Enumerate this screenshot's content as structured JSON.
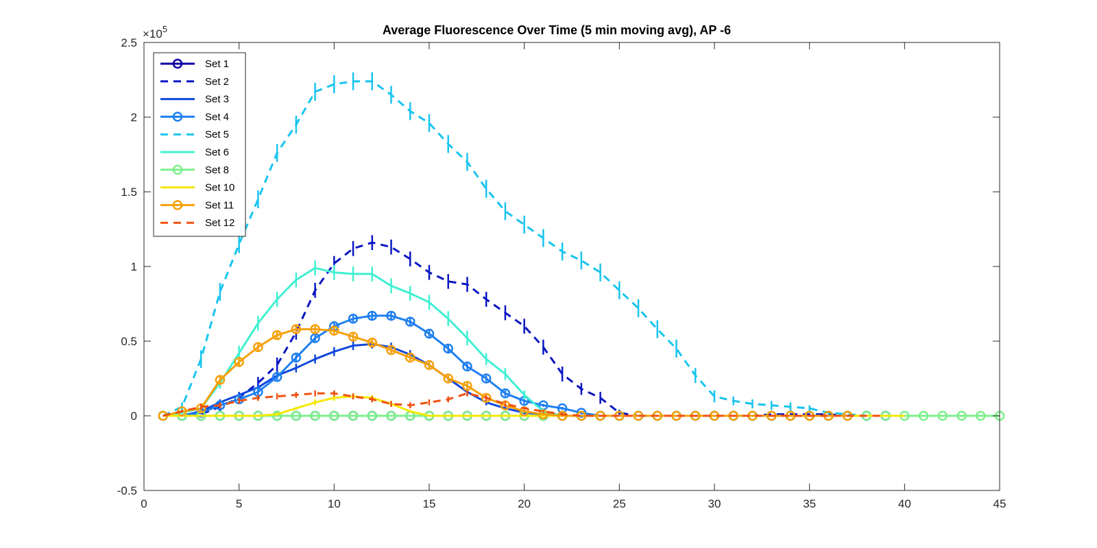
{
  "chart_data": {
    "type": "line",
    "title": "Average Fluorescence Over Time (5 min moving avg), AP -6",
    "xlabel": "",
    "ylabel": "",
    "xlim": [
      0,
      45
    ],
    "ylim": [
      -0.5,
      2.5
    ],
    "y_scale_base": "10",
    "y_scale_exp": "5",
    "grid": false,
    "legend_position": "top-left",
    "x_ticks": [
      "0",
      "5",
      "10",
      "15",
      "20",
      "25",
      "30",
      "35",
      "40",
      "45"
    ],
    "y_ticks": [
      "-0.5",
      "0",
      "0.5",
      "1",
      "1.5",
      "2",
      "2.5"
    ],
    "x_tick_values": [
      0,
      5,
      10,
      15,
      20,
      25,
      30,
      35,
      40,
      45
    ],
    "y_tick_values": [
      -0.5,
      0,
      0.5,
      1,
      1.5,
      2,
      2.5
    ],
    "series": [
      {
        "name": "Set 1",
        "color": "#0c00a3",
        "dashed": false,
        "marker": "circle",
        "x": [
          1,
          2,
          3,
          4,
          5,
          6,
          7,
          8,
          9,
          10,
          11,
          12,
          13,
          14,
          15,
          16,
          17,
          18,
          19,
          20,
          21,
          22,
          23,
          24,
          25,
          26,
          27,
          28,
          29,
          30,
          31,
          32,
          33,
          34,
          35,
          36,
          37,
          38,
          39
        ],
        "y": [
          0,
          0,
          0,
          0,
          0,
          0,
          0,
          0,
          0,
          0,
          0,
          0,
          0,
          0,
          0,
          0,
          0,
          0,
          0,
          0,
          0,
          0,
          0,
          0,
          0,
          0,
          0,
          0,
          0,
          0,
          0,
          0,
          0,
          0,
          0,
          0,
          0,
          0,
          0
        ],
        "err": [
          0,
          0,
          0,
          0,
          0,
          0,
          0,
          0,
          0,
          0,
          0,
          0,
          0,
          0,
          0,
          0,
          0,
          0,
          0,
          0,
          0,
          0,
          0,
          0,
          0,
          0,
          0,
          0,
          0,
          0,
          0,
          0,
          0,
          0,
          0,
          0,
          0,
          0,
          0
        ]
      },
      {
        "name": "Set 2",
        "color": "#0a16c2",
        "dashed": true,
        "marker": "none",
        "x": [
          1,
          2,
          3,
          4,
          5,
          6,
          7,
          8,
          9,
          10,
          11,
          12,
          13,
          14,
          15,
          16,
          17,
          18,
          19,
          20,
          21,
          22,
          23,
          24,
          25,
          26,
          27,
          28,
          29,
          30,
          31,
          32,
          33,
          34,
          35,
          36,
          37,
          38,
          39
        ],
        "y": [
          0,
          0,
          0.01,
          0.06,
          0.12,
          0.22,
          0.34,
          0.56,
          0.84,
          1.02,
          1.12,
          1.16,
          1.13,
          1.05,
          0.96,
          0.9,
          0.88,
          0.78,
          0.69,
          0.6,
          0.46,
          0.28,
          0.18,
          0.12,
          0.02,
          0,
          0,
          0,
          0,
          0,
          0,
          0,
          0.01,
          0.01,
          0.01,
          0.01,
          0,
          0,
          0
        ],
        "err": [
          0,
          0,
          0,
          0.03,
          0.04,
          0.04,
          0.05,
          0.05,
          0.05,
          0.05,
          0.05,
          0.05,
          0.05,
          0.05,
          0.05,
          0.05,
          0.05,
          0.05,
          0.05,
          0.05,
          0.05,
          0.05,
          0.04,
          0.04,
          0.02,
          0,
          0,
          0,
          0,
          0,
          0,
          0,
          0,
          0,
          0,
          0,
          0,
          0,
          0
        ]
      },
      {
        "name": "Set 3",
        "color": "#1048de",
        "dashed": false,
        "marker": "none",
        "x": [
          1,
          2,
          3,
          4,
          5,
          6,
          7,
          8,
          9,
          10,
          11,
          12,
          13,
          14,
          15,
          16,
          17,
          18,
          19,
          20,
          21,
          22,
          23,
          24,
          25,
          26,
          27,
          28,
          29,
          30,
          31,
          32,
          33,
          34,
          35,
          36,
          37,
          38,
          39
        ],
        "y": [
          0,
          0,
          0.03,
          0.09,
          0.14,
          0.19,
          0.27,
          0.32,
          0.38,
          0.43,
          0.47,
          0.48,
          0.46,
          0.41,
          0.34,
          0.25,
          0.16,
          0.09,
          0.05,
          0.02,
          0.01,
          0,
          0,
          0,
          0,
          0,
          0,
          0,
          0,
          0,
          0,
          0,
          0,
          0,
          0,
          0,
          0,
          0,
          0
        ],
        "err": [
          0,
          0,
          0.02,
          0.02,
          0.02,
          0.02,
          0.03,
          0.03,
          0.03,
          0.03,
          0.03,
          0.03,
          0.03,
          0.03,
          0.02,
          0.02,
          0.02,
          0.02,
          0.01,
          0.01,
          0,
          0,
          0,
          0,
          0,
          0,
          0,
          0,
          0,
          0,
          0,
          0,
          0,
          0,
          0,
          0,
          0,
          0,
          0
        ]
      },
      {
        "name": "Set 4",
        "color": "#1e7ff0",
        "dashed": false,
        "marker": "circle",
        "x": [
          1,
          2,
          3,
          4,
          5,
          6,
          7,
          8,
          9,
          10,
          11,
          12,
          13,
          14,
          15,
          16,
          17,
          18,
          19,
          20,
          21,
          22,
          23,
          24,
          25,
          26,
          27,
          28,
          29,
          30,
          31,
          32,
          33,
          34,
          35,
          36,
          37,
          38,
          39
        ],
        "y": [
          0,
          0,
          0.02,
          0.07,
          0.11,
          0.16,
          0.26,
          0.39,
          0.52,
          0.6,
          0.65,
          0.67,
          0.67,
          0.63,
          0.55,
          0.45,
          0.33,
          0.25,
          0.15,
          0.1,
          0.07,
          0.05,
          0.02,
          0,
          0,
          0,
          0,
          0,
          0,
          0,
          0,
          0,
          0,
          0,
          0,
          0,
          0,
          0,
          0
        ],
        "err": [
          0,
          0,
          0.01,
          0.02,
          0.02,
          0.02,
          0.02,
          0.03,
          0.03,
          0.03,
          0.03,
          0.03,
          0.03,
          0.03,
          0.03,
          0.03,
          0.02,
          0.02,
          0.02,
          0.02,
          0.01,
          0.01,
          0.01,
          0,
          0,
          0,
          0,
          0,
          0,
          0,
          0,
          0,
          0,
          0,
          0,
          0,
          0,
          0,
          0
        ]
      },
      {
        "name": "Set 5",
        "color": "#18c4f0",
        "dashed": true,
        "marker": "none",
        "x": [
          1,
          2,
          3,
          4,
          5,
          6,
          7,
          8,
          9,
          10,
          11,
          12,
          13,
          14,
          15,
          16,
          17,
          18,
          19,
          20,
          21,
          22,
          23,
          24,
          25,
          26,
          27,
          28,
          29,
          30,
          31,
          32,
          33,
          34,
          35,
          36,
          37,
          38,
          39
        ],
        "y": [
          0,
          0.06,
          0.38,
          0.83,
          1.15,
          1.45,
          1.76,
          1.95,
          2.17,
          2.22,
          2.24,
          2.24,
          2.15,
          2.04,
          1.96,
          1.82,
          1.7,
          1.52,
          1.37,
          1.28,
          1.19,
          1.1,
          1.04,
          0.96,
          0.84,
          0.72,
          0.58,
          0.45,
          0.27,
          0.13,
          0.1,
          0.08,
          0.07,
          0.06,
          0.05,
          0.02,
          0.01,
          0,
          0
        ],
        "err": [
          0,
          0.03,
          0.06,
          0.06,
          0.06,
          0.06,
          0.06,
          0.06,
          0.06,
          0.06,
          0.06,
          0.06,
          0.06,
          0.06,
          0.06,
          0.06,
          0.06,
          0.06,
          0.06,
          0.06,
          0.06,
          0.06,
          0.06,
          0.06,
          0.06,
          0.06,
          0.06,
          0.06,
          0.05,
          0.04,
          0.03,
          0.03,
          0.03,
          0.03,
          0.02,
          0.01,
          0,
          0,
          0
        ]
      },
      {
        "name": "Set 6",
        "color": "#40f0d2",
        "dashed": false,
        "marker": "none",
        "x": [
          1,
          2,
          3,
          4,
          5,
          6,
          7,
          8,
          9,
          10,
          11,
          12,
          13,
          14,
          15,
          16,
          17,
          18,
          19,
          20,
          21,
          22,
          23,
          24,
          25,
          26,
          27,
          28,
          29,
          30,
          31,
          32,
          33,
          34,
          35,
          36,
          37,
          38,
          39
        ],
        "y": [
          0,
          0.02,
          0.05,
          0.22,
          0.42,
          0.62,
          0.78,
          0.91,
          0.99,
          0.96,
          0.95,
          0.95,
          0.87,
          0.82,
          0.76,
          0.65,
          0.52,
          0.38,
          0.28,
          0.14,
          0.03,
          0,
          0,
          0,
          0,
          0,
          0,
          0,
          0,
          0,
          0,
          0,
          0,
          0,
          0,
          0,
          0,
          0,
          0
        ],
        "err": [
          0,
          0.01,
          0.02,
          0.04,
          0.05,
          0.05,
          0.05,
          0.05,
          0.05,
          0.05,
          0.05,
          0.05,
          0.05,
          0.05,
          0.05,
          0.05,
          0.05,
          0.04,
          0.04,
          0.03,
          0.02,
          0,
          0,
          0,
          0,
          0,
          0,
          0,
          0,
          0,
          0,
          0,
          0,
          0,
          0,
          0,
          0,
          0,
          0
        ]
      },
      {
        "name": "Set 8",
        "color": "#7cf08a",
        "dashed": false,
        "marker": "circle",
        "x": [
          1,
          2,
          3,
          4,
          5,
          6,
          7,
          8,
          9,
          10,
          11,
          12,
          13,
          14,
          15,
          16,
          17,
          18,
          19,
          20,
          21,
          22,
          23,
          24,
          25,
          26,
          27,
          28,
          29,
          30,
          31,
          32,
          33,
          34,
          35,
          36,
          37,
          38,
          39,
          40,
          41,
          42,
          43,
          44,
          45
        ],
        "y": [
          0,
          0,
          0,
          0,
          0,
          0,
          0,
          0,
          0,
          0,
          0,
          0,
          0,
          0,
          0,
          0,
          0,
          0,
          0,
          0,
          0,
          0,
          0,
          0,
          0,
          0,
          0,
          0,
          0,
          0,
          0,
          0,
          0,
          0,
          0,
          0,
          0,
          0,
          0,
          0,
          0,
          0,
          0,
          0,
          0
        ],
        "err": [
          0,
          0,
          0,
          0,
          0,
          0,
          0,
          0,
          0,
          0,
          0,
          0,
          0,
          0,
          0,
          0,
          0,
          0,
          0,
          0,
          0,
          0,
          0,
          0,
          0,
          0,
          0,
          0,
          0,
          0,
          0,
          0,
          0,
          0,
          0,
          0,
          0,
          0,
          0,
          0,
          0,
          0,
          0,
          0,
          0
        ]
      },
      {
        "name": "Set 10",
        "color": "#f5e800",
        "dashed": false,
        "marker": "none",
        "x": [
          1,
          2,
          3,
          4,
          5,
          6,
          7,
          8,
          9,
          10,
          11,
          12,
          13,
          14,
          15,
          16,
          17,
          18,
          19,
          20,
          21,
          22,
          23,
          24,
          25,
          26,
          27,
          28,
          29,
          30,
          31,
          32,
          33,
          34,
          35,
          36,
          37,
          38,
          39,
          40
        ],
        "y": [
          0,
          0,
          0,
          0,
          0,
          0,
          0.01,
          0.05,
          0.09,
          0.12,
          0.13,
          0.12,
          0.08,
          0.03,
          0,
          0,
          0,
          0,
          0,
          0,
          0,
          0,
          0,
          0,
          0,
          0,
          0,
          0,
          0,
          0,
          0,
          0,
          0,
          0,
          0,
          0,
          0,
          0,
          0,
          0
        ],
        "err": [
          0,
          0,
          0,
          0,
          0,
          0,
          0.01,
          0.01,
          0.02,
          0.02,
          0.02,
          0.02,
          0.02,
          0.01,
          0,
          0,
          0,
          0,
          0,
          0,
          0,
          0,
          0,
          0,
          0,
          0,
          0,
          0,
          0,
          0,
          0,
          0,
          0,
          0,
          0,
          0,
          0,
          0,
          0,
          0
        ]
      },
      {
        "name": "Set 11",
        "color": "#f5a00a",
        "dashed": false,
        "marker": "circle",
        "x": [
          1,
          2,
          3,
          4,
          5,
          6,
          7,
          8,
          9,
          10,
          11,
          12,
          13,
          14,
          15,
          16,
          17,
          18,
          19,
          20,
          21,
          22,
          23,
          24,
          25,
          26,
          27,
          28,
          29,
          30,
          31,
          32,
          33,
          34,
          35,
          36,
          37
        ],
        "y": [
          0,
          0.03,
          0.05,
          0.24,
          0.36,
          0.46,
          0.54,
          0.58,
          0.58,
          0.57,
          0.53,
          0.49,
          0.44,
          0.39,
          0.34,
          0.25,
          0.2,
          0.12,
          0.07,
          0.03,
          0.01,
          0,
          0,
          0,
          0,
          0,
          0,
          0,
          0,
          0,
          0,
          0,
          0,
          0,
          0,
          0,
          0
        ],
        "err": [
          0,
          0.01,
          0.02,
          0.03,
          0.03,
          0.03,
          0.03,
          0.03,
          0.03,
          0.03,
          0.03,
          0.03,
          0.02,
          0.02,
          0.02,
          0.02,
          0.02,
          0.02,
          0.01,
          0.01,
          0.01,
          0,
          0,
          0,
          0,
          0,
          0,
          0,
          0,
          0,
          0,
          0,
          0,
          0,
          0,
          0,
          0
        ]
      },
      {
        "name": "Set 12",
        "color": "#f05010",
        "dashed": true,
        "marker": "none",
        "x": [
          1,
          2,
          3,
          4,
          5,
          6,
          7,
          8,
          9,
          10,
          11,
          12,
          13,
          14,
          15,
          16,
          17,
          18,
          19,
          20,
          21,
          22,
          23,
          24,
          25,
          26,
          27,
          28,
          29,
          30,
          31,
          32,
          33,
          34,
          35,
          36,
          37,
          38,
          39
        ],
        "y": [
          0,
          0.03,
          0.06,
          0.07,
          0.1,
          0.12,
          0.13,
          0.14,
          0.15,
          0.15,
          0.13,
          0.11,
          0.08,
          0.07,
          0.09,
          0.11,
          0.15,
          0.12,
          0.08,
          0.05,
          0.03,
          0.01,
          0,
          0,
          0,
          0,
          0,
          0,
          0,
          0,
          0,
          0,
          0,
          0,
          0,
          0,
          0,
          0,
          0
        ],
        "err": [
          0,
          0.01,
          0.02,
          0.02,
          0.02,
          0.02,
          0.02,
          0.02,
          0.02,
          0.02,
          0.02,
          0.02,
          0.02,
          0.02,
          0.02,
          0.02,
          0.02,
          0.02,
          0.02,
          0.01,
          0.01,
          0.01,
          0,
          0,
          0,
          0,
          0,
          0,
          0,
          0,
          0,
          0,
          0,
          0,
          0,
          0,
          0,
          0,
          0
        ]
      }
    ]
  }
}
